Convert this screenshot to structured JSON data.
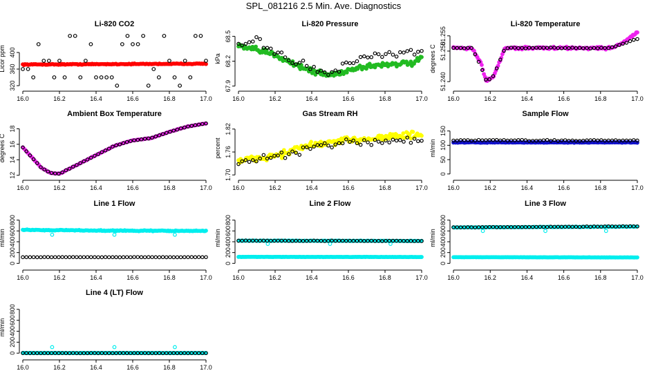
{
  "page": {
    "title": "SPL_081216  2.5 Min. Ave. Diagnostics"
  },
  "colors": {
    "red": "#ff0000",
    "green": "#22bb22",
    "magenta": "#ee22ee",
    "blue": "#1111cc",
    "yellow": "#ffff00",
    "cyan": "#00eeee",
    "black": "#000000"
  },
  "chart_data": [
    {
      "id": "co2",
      "type": "scatter",
      "title": "Li-820 CO2",
      "ylabel": "Licor ppm",
      "xlim": [
        16.0,
        17.0
      ],
      "ylim": [
        315,
        455
      ],
      "xticks": [
        "16.0",
        "16.2",
        "16.4",
        "16.6",
        "16.8",
        "17.0"
      ],
      "yticks": [
        "320",
        "360",
        "400"
      ],
      "series": [
        {
          "name": "primary",
          "color": "red",
          "style": "dense",
          "base": [
            [
              16.0,
              371
            ],
            [
              16.5,
              372
            ],
            [
              17.0,
              373
            ]
          ],
          "noise": 1.5
        },
        {
          "name": "secondary",
          "color": "black",
          "style": "open",
          "pattern": "co2"
        }
      ]
    },
    {
      "id": "pressure",
      "type": "scatter",
      "title": "Li-820 Pressure",
      "ylabel": "kPa",
      "xlim": [
        16.0,
        17.0
      ],
      "ylim": [
        67.88,
        68.58
      ],
      "xticks": [
        "16.0",
        "16.2",
        "16.4",
        "16.6",
        "16.8",
        "17.0"
      ],
      "yticks": [
        "67.9",
        "68.2",
        "68.5"
      ],
      "series": [
        {
          "name": "primary",
          "color": "green",
          "style": "dense",
          "base": [
            [
              16.0,
              68.38
            ],
            [
              16.1,
              68.33
            ],
            [
              16.2,
              68.28
            ],
            [
              16.3,
              68.17
            ],
            [
              16.4,
              68.08
            ],
            [
              16.5,
              68.03
            ],
            [
              16.55,
              68.06
            ],
            [
              16.65,
              68.12
            ],
            [
              16.75,
              68.15
            ],
            [
              16.85,
              68.17
            ],
            [
              16.95,
              68.17
            ],
            [
              17.0,
              68.23
            ]
          ],
          "noise": 0.05
        },
        {
          "name": "secondary",
          "color": "black",
          "style": "open",
          "base": [
            [
              16.0,
              68.4
            ],
            [
              16.1,
              68.44
            ],
            [
              16.2,
              68.32
            ],
            [
              16.3,
              68.2
            ],
            [
              16.4,
              68.12
            ],
            [
              16.5,
              68.03
            ],
            [
              16.6,
              68.18
            ],
            [
              16.7,
              68.24
            ],
            [
              16.8,
              68.27
            ],
            [
              16.9,
              68.3
            ],
            [
              17.0,
              68.32
            ]
          ],
          "noise": 0.06
        }
      ]
    },
    {
      "id": "temp",
      "type": "scatter",
      "title": "Li-820 Temperature",
      "ylabel": "degrees C",
      "xlim": [
        16.0,
        17.0
      ],
      "ylim": [
        51.238,
        51.257
      ],
      "xticks": [
        "16.0",
        "16.2",
        "16.4",
        "16.6",
        "16.8",
        "17.0"
      ],
      "yticks": [
        "51.240",
        "51.250",
        "51.255"
      ],
      "series": [
        {
          "name": "primary",
          "color": "magenta",
          "style": "dense",
          "base": [
            [
              16.0,
              51.251
            ],
            [
              16.1,
              51.251
            ],
            [
              16.15,
              51.246
            ],
            [
              16.18,
              51.24
            ],
            [
              16.22,
              51.242
            ],
            [
              16.28,
              51.251
            ],
            [
              16.85,
              51.251
            ],
            [
              16.9,
              51.252
            ],
            [
              17.0,
              51.256
            ]
          ],
          "noise": 0.0006
        },
        {
          "name": "secondary",
          "color": "black",
          "style": "open",
          "base": [
            [
              16.0,
              51.251
            ],
            [
              16.1,
              51.251
            ],
            [
              16.15,
              51.245
            ],
            [
              16.18,
              51.24
            ],
            [
              16.22,
              51.242
            ],
            [
              16.28,
              51.251
            ],
            [
              16.85,
              51.251
            ],
            [
              16.9,
              51.252
            ],
            [
              17.0,
              51.254
            ]
          ],
          "noise": 0.0002
        }
      ]
    },
    {
      "id": "boxtemp",
      "type": "scatter",
      "title": "Ambient Box Temperature",
      "ylabel": "degrees C",
      "xlim": [
        16.0,
        17.0
      ],
      "ylim": [
        11.8,
        19.2
      ],
      "xticks": [
        "16.0",
        "16.2",
        "16.4",
        "16.6",
        "16.8",
        "17.0"
      ],
      "yticks": [
        "12",
        "14",
        "16",
        "18"
      ],
      "series": [
        {
          "name": "primary",
          "color": "magenta",
          "style": "dense",
          "base": [
            [
              16.0,
              15.6
            ],
            [
              16.05,
              14.3
            ],
            [
              16.1,
              13.0
            ],
            [
              16.15,
              12.3
            ],
            [
              16.2,
              12.2
            ],
            [
              16.3,
              13.4
            ],
            [
              16.4,
              14.6
            ],
            [
              16.5,
              15.8
            ],
            [
              16.6,
              16.5
            ],
            [
              16.7,
              16.8
            ],
            [
              16.8,
              17.6
            ],
            [
              16.9,
              18.3
            ],
            [
              17.0,
              18.7
            ]
          ],
          "noise": 0.05
        },
        {
          "name": "secondary",
          "color": "black",
          "style": "open",
          "base": [
            [
              16.0,
              15.6
            ],
            [
              16.05,
              14.3
            ],
            [
              16.1,
              13.0
            ],
            [
              16.15,
              12.3
            ],
            [
              16.2,
              12.2
            ],
            [
              16.3,
              13.4
            ],
            [
              16.4,
              14.6
            ],
            [
              16.5,
              15.8
            ],
            [
              16.6,
              16.5
            ],
            [
              16.7,
              16.8
            ],
            [
              16.8,
              17.6
            ],
            [
              16.9,
              18.3
            ],
            [
              17.0,
              18.7
            ]
          ],
          "noise": 0.03
        }
      ]
    },
    {
      "id": "rh",
      "type": "scatter",
      "title": "Gas Stream RH",
      "ylabel": "percent",
      "xlim": [
        16.0,
        17.0
      ],
      "ylim": [
        1.695,
        1.845
      ],
      "xticks": [
        "16.0",
        "16.2",
        "16.4",
        "16.6",
        "16.8",
        "17.0"
      ],
      "yticks": [
        "1.70",
        "1.76",
        "1.82"
      ],
      "series": [
        {
          "name": "primary",
          "color": "yellow",
          "style": "dense",
          "base": [
            [
              16.0,
              1.735
            ],
            [
              16.2,
              1.75
            ],
            [
              16.4,
              1.778
            ],
            [
              16.6,
              1.79
            ],
            [
              16.8,
              1.8
            ],
            [
              17.0,
              1.805
            ]
          ],
          "noise": 0.014
        },
        {
          "name": "secondary",
          "color": "black",
          "style": "open",
          "base": [
            [
              16.0,
              1.73
            ],
            [
              16.2,
              1.745
            ],
            [
              16.4,
              1.77
            ],
            [
              16.6,
              1.785
            ],
            [
              16.8,
              1.79
            ],
            [
              17.0,
              1.79
            ]
          ],
          "noise": 0.015
        }
      ]
    },
    {
      "id": "sampleflow",
      "type": "scatter",
      "title": "Sample Flow",
      "ylabel": "ml/min",
      "xlim": [
        16.0,
        17.0
      ],
      "ylim": [
        -10,
        190
      ],
      "xticks": [
        "16.0",
        "16.2",
        "16.4",
        "16.6",
        "16.8",
        "17.0"
      ],
      "yticks": [
        "0",
        "50",
        "100",
        "150"
      ],
      "series": [
        {
          "name": "primary",
          "color": "blue",
          "style": "dense",
          "base": [
            [
              16.0,
              110
            ],
            [
              17.0,
              110
            ]
          ],
          "noise": 1.5
        },
        {
          "name": "secondary",
          "color": "black",
          "style": "open",
          "base": [
            [
              16.0,
              117
            ],
            [
              17.0,
              117
            ]
          ],
          "noise": 3
        }
      ]
    },
    {
      "id": "line1",
      "type": "scatter",
      "title": "Line 1 Flow",
      "ylabel": "ml/min",
      "xlim": [
        16.0,
        17.0
      ],
      "ylim": [
        -60,
        1000
      ],
      "xticks": [
        "16.0",
        "16.2",
        "16.4",
        "16.6",
        "16.8",
        "17.0"
      ],
      "yticks": [
        "0",
        "200",
        "400",
        "600",
        "800"
      ],
      "series": [
        {
          "name": "primary",
          "color": "cyan",
          "style": "dense",
          "base": [
            [
              16.0,
              620
            ],
            [
              16.5,
              605
            ],
            [
              17.0,
              600
            ]
          ],
          "noise": 12,
          "dips": [
            [
              16.16,
              530
            ],
            [
              16.5,
              530
            ],
            [
              16.83,
              530
            ]
          ]
        },
        {
          "name": "secondary",
          "color": "black",
          "style": "open",
          "base": [
            [
              16.0,
              115
            ],
            [
              17.0,
              115
            ]
          ],
          "noise": 3
        }
      ]
    },
    {
      "id": "line2",
      "type": "scatter",
      "title": "Line 2 Flow",
      "ylabel": "ml/min",
      "xlim": [
        16.0,
        17.0
      ],
      "ylim": [
        -60,
        1000
      ],
      "xticks": [
        "16.0",
        "16.2",
        "16.4",
        "16.6",
        "16.8",
        "17.0"
      ],
      "yticks": [
        "0",
        "200",
        "400",
        "600",
        "800"
      ],
      "series": [
        {
          "name": "primary",
          "color": "cyan",
          "style": "dense",
          "base": [
            [
              16.0,
              420
            ],
            [
              17.0,
              415
            ]
          ],
          "noise": 6,
          "dips": [
            [
              16.16,
              360
            ],
            [
              16.5,
              360
            ],
            [
              16.83,
              360
            ]
          ]
        },
        {
          "name": "secondary",
          "color": "black",
          "style": "open",
          "base": [
            [
              16.0,
              420
            ],
            [
              17.0,
              415
            ]
          ],
          "noise": 5
        },
        {
          "name": "tertiary",
          "color": "cyan",
          "style": "dense",
          "base": [
            [
              16.0,
              120
            ],
            [
              17.0,
              118
            ]
          ],
          "noise": 3
        }
      ]
    },
    {
      "id": "line3",
      "type": "scatter",
      "title": "Line 3 Flow",
      "ylabel": "ml/min",
      "xlim": [
        16.0,
        17.0
      ],
      "ylim": [
        -60,
        1000
      ],
      "xticks": [
        "16.0",
        "16.2",
        "16.4",
        "16.6",
        "16.8",
        "17.0"
      ],
      "yticks": [
        "0",
        "200",
        "400",
        "600",
        "800"
      ],
      "series": [
        {
          "name": "primary",
          "color": "cyan",
          "style": "dense",
          "base": [
            [
              16.0,
              665
            ],
            [
              17.0,
              680
            ]
          ],
          "noise": 6,
          "dips": [
            [
              16.16,
              600
            ],
            [
              16.5,
              600
            ],
            [
              16.83,
              600
            ]
          ]
        },
        {
          "name": "secondary",
          "color": "black",
          "style": "open",
          "base": [
            [
              16.0,
              665
            ],
            [
              17.0,
              685
            ]
          ],
          "noise": 6
        },
        {
          "name": "tertiary",
          "color": "cyan",
          "style": "dense",
          "base": [
            [
              16.0,
              115
            ],
            [
              17.0,
              110
            ]
          ],
          "noise": 3
        }
      ]
    },
    {
      "id": "line4",
      "type": "scatter",
      "title": "Line 4 (LT) Flow",
      "ylabel": "ml/min",
      "xlim": [
        16.0,
        17.0
      ],
      "ylim": [
        -60,
        1000
      ],
      "xticks": [
        "16.0",
        "16.2",
        "16.4",
        "16.6",
        "16.8",
        "17.0"
      ],
      "yticks": [
        "0",
        "200",
        "400",
        "600",
        "800"
      ],
      "series": [
        {
          "name": "primary",
          "color": "cyan",
          "style": "dense",
          "base": [
            [
              16.0,
              3
            ],
            [
              17.0,
              3
            ]
          ],
          "noise": 2,
          "spikes": [
            [
              16.16,
              110
            ],
            [
              16.5,
              110
            ],
            [
              16.83,
              110
            ]
          ]
        },
        {
          "name": "secondary",
          "color": "black",
          "style": "open",
          "base": [
            [
              16.0,
              0
            ],
            [
              17.0,
              0
            ]
          ],
          "noise": 2
        }
      ]
    }
  ]
}
